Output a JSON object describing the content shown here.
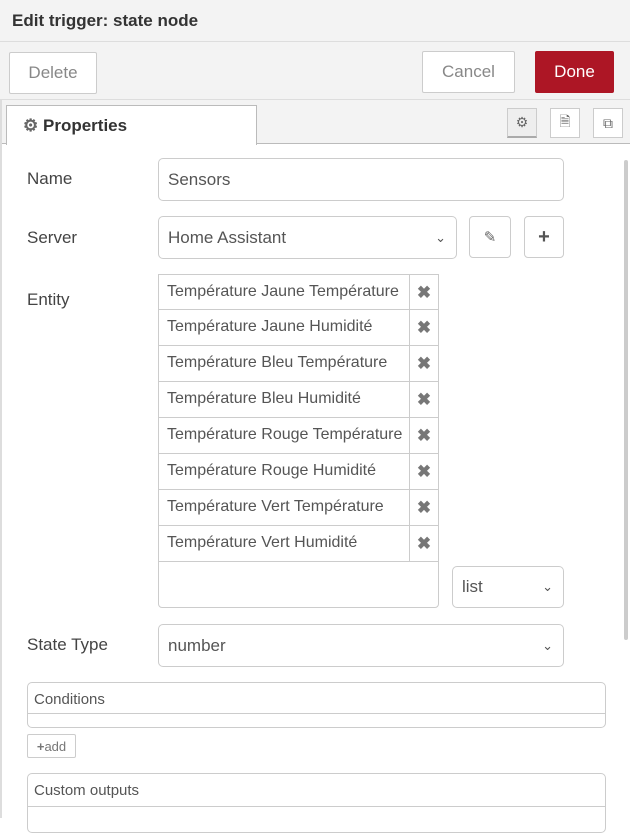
{
  "header": {
    "title": "Edit trigger: state node"
  },
  "toolbar": {
    "delete": "Delete",
    "cancel": "Cancel",
    "done": "Done",
    "done_color": "#ad1625"
  },
  "tabs": {
    "properties": "Properties",
    "icons": [
      "gear-icon",
      "description-icon",
      "appearance-icon"
    ]
  },
  "form": {
    "name_label": "Name",
    "name_value": "Sensors",
    "server_label": "Server",
    "server_value": "Home Assistant",
    "entity_label": "Entity",
    "entities": [
      "Température Jaune Température",
      "Température Jaune Humidité",
      "Température Bleu Température",
      "Température Bleu Humidité",
      "Température Rouge Température",
      "Température Rouge Humidité",
      "Température Vert Température",
      "Température Vert Humidité"
    ],
    "entity_mode": "list",
    "state_type_label": "State Type",
    "state_type_value": "number",
    "conditions_label": "Conditions",
    "add_label": "add",
    "custom_outputs_label": "Custom outputs"
  }
}
